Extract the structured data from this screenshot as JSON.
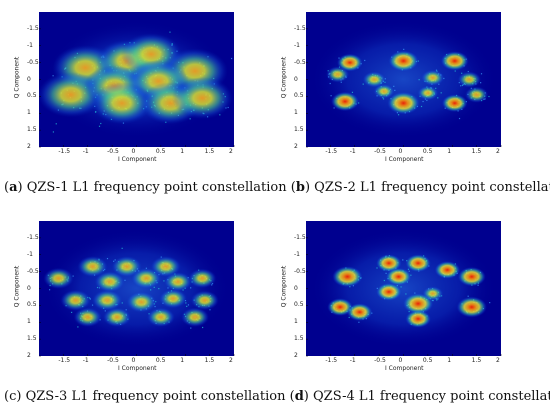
{
  "chart_data": [
    {
      "type": "heatmap",
      "panel_letter": "a",
      "caption": "QZS-1 L1 frequency point constellation",
      "xlabel": "I Component",
      "ylabel": "Q Component",
      "xlim": [
        -2,
        2
      ],
      "ylim": [
        -2,
        2
      ],
      "x_ticks": [
        "-1.5",
        "-1",
        "-0.5",
        "0",
        "0.5",
        "1",
        "1.5",
        "2"
      ],
      "y_ticks": [
        "-1.5",
        "-1",
        "-0.5",
        "0",
        "0.5",
        "1",
        "1.5",
        "2"
      ],
      "clusters": [
        {
          "i": -1.05,
          "q": -0.35,
          "spread": 0.28,
          "intensity": 0.55
        },
        {
          "i": -0.2,
          "q": -0.55,
          "spread": 0.26,
          "intensity": 0.6
        },
        {
          "i": 0.3,
          "q": -0.75,
          "spread": 0.26,
          "intensity": 0.65
        },
        {
          "i": 1.2,
          "q": -0.25,
          "spread": 0.28,
          "intensity": 0.6
        },
        {
          "i": -1.35,
          "q": 0.45,
          "spread": 0.28,
          "intensity": 0.55
        },
        {
          "i": -0.45,
          "q": 0.2,
          "spread": 0.26,
          "intensity": 0.55
        },
        {
          "i": 0.45,
          "q": 0.05,
          "spread": 0.26,
          "intensity": 0.55
        },
        {
          "i": -0.3,
          "q": 0.7,
          "spread": 0.26,
          "intensity": 0.65
        },
        {
          "i": 0.7,
          "q": 0.7,
          "spread": 0.26,
          "intensity": 0.55
        },
        {
          "i": 1.35,
          "q": 0.55,
          "spread": 0.26,
          "intensity": 0.55
        }
      ]
    },
    {
      "type": "heatmap",
      "panel_letter": "b",
      "caption": "QZS-2 L1 frequency point constellation",
      "xlabel": "I Component",
      "ylabel": "Q Component",
      "xlim": [
        -2,
        2
      ],
      "ylim": [
        -2,
        2
      ],
      "x_ticks": [
        "-1.5",
        "-1",
        "-0.5",
        "0",
        "0.5",
        "1",
        "1.5",
        "2"
      ],
      "y_ticks": [
        "-1.5",
        "-1",
        "-0.5",
        "0",
        "0.5",
        "1",
        "1.5",
        "2"
      ],
      "clusters": [
        {
          "i": -1.1,
          "q": -0.5,
          "spread": 0.11,
          "intensity": 0.85
        },
        {
          "i": 0.0,
          "q": -0.55,
          "spread": 0.13,
          "intensity": 0.9
        },
        {
          "i": 1.05,
          "q": -0.55,
          "spread": 0.12,
          "intensity": 0.85
        },
        {
          "i": -1.35,
          "q": -0.15,
          "spread": 0.1,
          "intensity": 0.7
        },
        {
          "i": -0.6,
          "q": 0.0,
          "spread": 0.1,
          "intensity": 0.75
        },
        {
          "i": 0.6,
          "q": -0.05,
          "spread": 0.1,
          "intensity": 0.75
        },
        {
          "i": 1.35,
          "q": 0.0,
          "spread": 0.1,
          "intensity": 0.7
        },
        {
          "i": -1.2,
          "q": 0.65,
          "spread": 0.12,
          "intensity": 0.85
        },
        {
          "i": -0.4,
          "q": 0.35,
          "spread": 0.09,
          "intensity": 0.7
        },
        {
          "i": 0.0,
          "q": 0.7,
          "spread": 0.14,
          "intensity": 0.9
        },
        {
          "i": 0.5,
          "q": 0.4,
          "spread": 0.09,
          "intensity": 0.7
        },
        {
          "i": 1.05,
          "q": 0.7,
          "spread": 0.11,
          "intensity": 0.8
        },
        {
          "i": 1.5,
          "q": 0.45,
          "spread": 0.1,
          "intensity": 0.75
        }
      ]
    },
    {
      "type": "heatmap",
      "panel_letter": "c",
      "caption": "QZS-3 L1 frequency point constellation",
      "xlabel": "I Component",
      "ylabel": "Q Component",
      "xlim": [
        -2,
        2
      ],
      "ylim": [
        -2,
        2
      ],
      "x_ticks": [
        "-1.5",
        "-1",
        "-0.5",
        "0",
        "0.5",
        "1",
        "1.5",
        "2"
      ],
      "y_ticks": [
        "-1.5",
        "-1",
        "-0.5",
        "0",
        "0.5",
        "1",
        "1.5",
        "2"
      ],
      "clusters": [
        {
          "i": -0.9,
          "q": -0.65,
          "spread": 0.13,
          "intensity": 0.7
        },
        {
          "i": -0.2,
          "q": -0.65,
          "spread": 0.13,
          "intensity": 0.75
        },
        {
          "i": 0.6,
          "q": -0.65,
          "spread": 0.13,
          "intensity": 0.75
        },
        {
          "i": -1.6,
          "q": -0.3,
          "spread": 0.13,
          "intensity": 0.65
        },
        {
          "i": -0.55,
          "q": -0.2,
          "spread": 0.13,
          "intensity": 0.7
        },
        {
          "i": 0.2,
          "q": -0.3,
          "spread": 0.13,
          "intensity": 0.7
        },
        {
          "i": 0.85,
          "q": -0.2,
          "spread": 0.12,
          "intensity": 0.65
        },
        {
          "i": 1.35,
          "q": -0.3,
          "spread": 0.12,
          "intensity": 0.65
        },
        {
          "i": -1.25,
          "q": 0.35,
          "spread": 0.13,
          "intensity": 0.7
        },
        {
          "i": -0.6,
          "q": 0.35,
          "spread": 0.13,
          "intensity": 0.7
        },
        {
          "i": 0.1,
          "q": 0.4,
          "spread": 0.13,
          "intensity": 0.7
        },
        {
          "i": 0.75,
          "q": 0.3,
          "spread": 0.12,
          "intensity": 0.65
        },
        {
          "i": 1.4,
          "q": 0.35,
          "spread": 0.12,
          "intensity": 0.65
        },
        {
          "i": -1.0,
          "q": 0.85,
          "spread": 0.12,
          "intensity": 0.65
        },
        {
          "i": -0.4,
          "q": 0.85,
          "spread": 0.12,
          "intensity": 0.7
        },
        {
          "i": 0.5,
          "q": 0.85,
          "spread": 0.12,
          "intensity": 0.65
        },
        {
          "i": 1.2,
          "q": 0.85,
          "spread": 0.12,
          "intensity": 0.65
        }
      ]
    },
    {
      "type": "heatmap",
      "panel_letter": "d",
      "caption": "QZS-4 L1 frequency point constellation",
      "xlabel": "I Component",
      "ylabel": "Q Component",
      "xlim": [
        -2,
        2
      ],
      "ylim": [
        -2,
        2
      ],
      "x_ticks": [
        "-1.5",
        "-1",
        "-0.5",
        "0",
        "0.5",
        "1",
        "1.5",
        "2"
      ],
      "y_ticks": [
        "-1.5",
        "-1",
        "-0.5",
        "0",
        "0.5",
        "1",
        "1.5",
        "2"
      ],
      "clusters": [
        {
          "i": -0.3,
          "q": -0.75,
          "spread": 0.11,
          "intensity": 0.85
        },
        {
          "i": 0.3,
          "q": -0.75,
          "spread": 0.11,
          "intensity": 0.85
        },
        {
          "i": -1.15,
          "q": -0.35,
          "spread": 0.13,
          "intensity": 0.9
        },
        {
          "i": -0.1,
          "q": -0.35,
          "spread": 0.11,
          "intensity": 0.8
        },
        {
          "i": 0.9,
          "q": -0.55,
          "spread": 0.11,
          "intensity": 0.85
        },
        {
          "i": 1.4,
          "q": -0.35,
          "spread": 0.12,
          "intensity": 0.85
        },
        {
          "i": -0.3,
          "q": 0.1,
          "spread": 0.11,
          "intensity": 0.85
        },
        {
          "i": 0.6,
          "q": 0.15,
          "spread": 0.09,
          "intensity": 0.7
        },
        {
          "i": 0.3,
          "q": 0.45,
          "spread": 0.13,
          "intensity": 0.9
        },
        {
          "i": -1.3,
          "q": 0.55,
          "spread": 0.11,
          "intensity": 0.8
        },
        {
          "i": -0.9,
          "q": 0.7,
          "spread": 0.11,
          "intensity": 0.8
        },
        {
          "i": 0.3,
          "q": 0.9,
          "spread": 0.11,
          "intensity": 0.8
        },
        {
          "i": 1.4,
          "q": 0.55,
          "spread": 0.13,
          "intensity": 0.9
        }
      ]
    }
  ]
}
